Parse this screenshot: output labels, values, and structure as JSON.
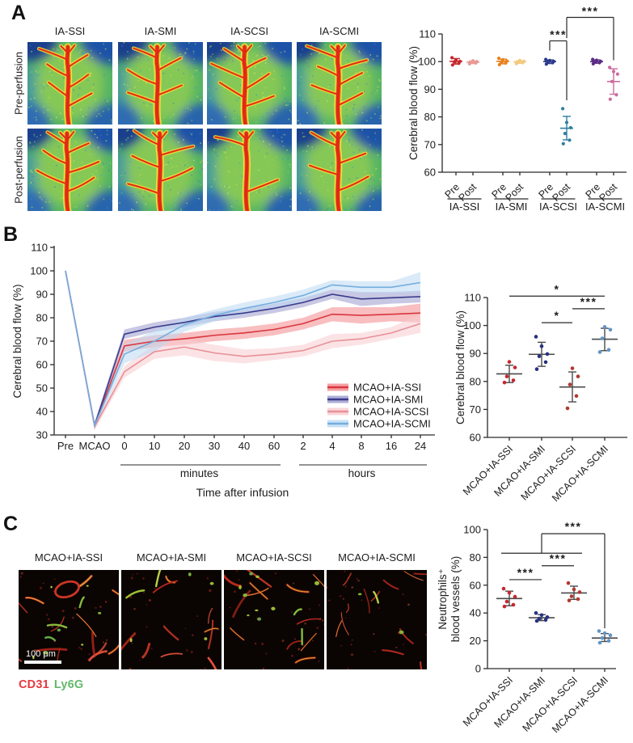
{
  "figure": {
    "background": "#ffffff"
  },
  "panelA": {
    "label": "A",
    "column_labels": [
      "IA-SSI",
      "IA-SMI",
      "IA-SCSI",
      "IA-SCMI"
    ],
    "row_labels": [
      "Pre-perfusion",
      "Post-perfusion"
    ]
  },
  "panelB": {
    "label": "B"
  },
  "panelC": {
    "label": "C",
    "column_labels": [
      "MCAO+IA-SSI",
      "MCAO+IA-SMI",
      "MCAO+IA-SCSI",
      "MCAO+IA-SCMI"
    ],
    "scale_bar": "100 μm",
    "stain_labels": [
      {
        "text": "CD31",
        "color": "#e23b41"
      },
      {
        "text": "Ly6G",
        "color": "#63b96a"
      }
    ]
  },
  "chart_data": [
    {
      "id": "panelA-scatter",
      "type": "scatter",
      "ylabel": "Cerebral blood flow (%)",
      "ylim": [
        60,
        110
      ],
      "yticks": [
        60,
        70,
        80,
        90,
        100,
        110
      ],
      "sub_ticks": [
        "Pre",
        "Post"
      ],
      "groups": [
        {
          "label": "IA-SSI",
          "pre": {
            "color": "#c5272d",
            "points": [
              98.8,
              99.4,
              99.9,
              100.1,
              100.6,
              101.4
            ],
            "mean": 100.1,
            "lo": 99.1,
            "hi": 101.1
          },
          "post": {
            "color": "#e89a94",
            "points": [
              99.2,
              99.5,
              99.8,
              100.0,
              100.3
            ],
            "mean": 99.8,
            "lo": 99.3,
            "hi": 100.2
          }
        },
        {
          "label": "IA-SMI",
          "pre": {
            "color": "#e8821e",
            "points": [
              98.9,
              99.5,
              99.9,
              100.2,
              100.7,
              101.2
            ],
            "mean": 100.1,
            "lo": 99.2,
            "hi": 100.9
          },
          "post": {
            "color": "#f3c97e",
            "points": [
              99.3,
              99.6,
              99.9,
              100.1,
              100.4
            ],
            "mean": 99.9,
            "lo": 99.4,
            "hi": 100.3
          }
        },
        {
          "label": "IA-SCSI",
          "pre": {
            "color": "#2c3a8c",
            "points": [
              99.1,
              99.6,
              99.9,
              100.1,
              100.4,
              100.8
            ],
            "mean": 100.0,
            "lo": 99.3,
            "hi": 100.6
          },
          "post": {
            "color": "#2e7f9e",
            "points": [
              70.3,
              71.6,
              74.0,
              76.1,
              78.0,
              83.0
            ],
            "mean": 75.9,
            "lo": 71.7,
            "hi": 80.2
          }
        },
        {
          "label": "IA-SCMI",
          "pre": {
            "color": "#5b2c86",
            "points": [
              99.2,
              99.6,
              99.9,
              100.1,
              100.5,
              100.8
            ],
            "mean": 100.0,
            "lo": 99.4,
            "hi": 100.6
          },
          "post": {
            "color": "#cb6b9d",
            "points": [
              86.4,
              88.0,
              92.8,
              95.5,
              96.4,
              97.9
            ],
            "mean": 92.8,
            "lo": 88.2,
            "hi": 97.4
          }
        }
      ],
      "significance": [
        {
          "label": "***",
          "from": [
            2,
            0
          ],
          "to": [
            2,
            1
          ],
          "bar": 107.5,
          "drop_from": 104.0,
          "drop_to": 86.0
        },
        {
          "label": "***",
          "from": [
            2,
            1
          ],
          "to": [
            3,
            1
          ],
          "bar": 116.0,
          "drop_from": 108.5,
          "drop_to": 100.5
        }
      ]
    },
    {
      "id": "panelB-line",
      "type": "line",
      "xlabel": "Time after infusion",
      "ylabel": "Cerebral blood flow (%)",
      "ylim": [
        30,
        110
      ],
      "yticks": [
        30,
        40,
        50,
        60,
        70,
        80,
        90,
        100,
        110
      ],
      "categories": [
        "Pre",
        "MCAO",
        "0",
        "10",
        "20",
        "30",
        "40",
        "60",
        "2",
        "4",
        "8",
        "16",
        "24"
      ],
      "x_section_labels": [
        {
          "label": "minutes",
          "span": [
            2,
            7
          ]
        },
        {
          "label": "hours",
          "span": [
            8,
            12
          ]
        }
      ],
      "legend_position": "bottom-right",
      "series": [
        {
          "name": "MCAO+IA-SSI",
          "line_color": "#d9363e",
          "band_color": "#f2888c",
          "values": [
            100,
            34,
            68,
            70,
            71,
            72.5,
            73.5,
            75,
            77.5,
            81.5,
            81,
            81.5,
            82
          ],
          "err": [
            0.4,
            1.5,
            2.5,
            2.5,
            2.5,
            2.5,
            2.5,
            2.5,
            2.5,
            3,
            3.5,
            3,
            4
          ]
        },
        {
          "name": "MCAO+IA-SMI",
          "line_color": "#3a3a8c",
          "band_color": "#9a9ace",
          "values": [
            100,
            34,
            73,
            76,
            78,
            80.5,
            82,
            84,
            86.5,
            90,
            88,
            88.5,
            89
          ],
          "err": [
            0.4,
            1.5,
            2,
            2,
            2,
            2,
            2,
            2,
            2,
            2,
            3,
            2.5,
            2.5
          ]
        },
        {
          "name": "MCAO+IA-SCSI",
          "line_color": "#e89098",
          "band_color": "#f7ccd0",
          "values": [
            100,
            33.5,
            57,
            65.5,
            67.5,
            65,
            63.5,
            64.5,
            66,
            70,
            71,
            73.5,
            77.5
          ],
          "err": [
            0.4,
            1.5,
            2.5,
            3,
            3.5,
            3.5,
            3,
            2.5,
            2.5,
            3,
            2.5,
            2.5,
            4
          ]
        },
        {
          "name": "MCAO+IA-SCMI",
          "line_color": "#74aede",
          "band_color": "#bcd9f2",
          "values": [
            100,
            34,
            64.5,
            70,
            77,
            81,
            84,
            86.5,
            89.5,
            94,
            93,
            93,
            95
          ],
          "err": [
            0.4,
            1.5,
            4,
            4.5,
            3,
            2.5,
            2.5,
            2.5,
            2.5,
            2,
            2.5,
            2.5,
            4.5
          ]
        }
      ]
    },
    {
      "id": "panelB-scatter",
      "type": "scatter",
      "ylabel": "Cerebral blood flow (%)",
      "ylim": [
        60,
        110
      ],
      "yticks": [
        60,
        70,
        80,
        90,
        100,
        110
      ],
      "groups": [
        {
          "label": "MCAO+IA-SSI",
          "color": "#c5272d",
          "points": [
            79.6,
            80.4,
            81.8,
            85.0,
            87.0
          ],
          "mean": 82.7,
          "lo": 79.6,
          "hi": 85.8
        },
        {
          "label": "MCAO+IA-SMI",
          "color": "#26327e",
          "points": [
            84.4,
            86.9,
            89.0,
            89.8,
            92.6,
            96.0
          ],
          "mean": 89.7,
          "lo": 85.4,
          "hi": 94.0
        },
        {
          "label": "MCAO+IA-SCSI",
          "color": "#b03a30",
          "points": [
            70.4,
            74.8,
            78.9,
            81.8,
            84.7
          ],
          "mean": 78.0,
          "lo": 72.7,
          "hi": 83.4
        },
        {
          "label": "MCAO+IA-SCMI",
          "color": "#6096c8",
          "points": [
            90.5,
            91.3,
            95.4,
            98.5,
            99.5
          ],
          "mean": 95.1,
          "lo": 91.0,
          "hi": 99.0
        }
      ],
      "significance": [
        {
          "label": "*",
          "from": 0,
          "to": 3,
          "bar": 110.5
        },
        {
          "label": "***",
          "from": 2,
          "to": 3,
          "bar": 106.0
        },
        {
          "label": "*",
          "from": 1,
          "to": 2,
          "bar": 101.0
        }
      ]
    },
    {
      "id": "panelC-scatter",
      "type": "scatter",
      "ylabel_lines": [
        "Neutrophils⁺",
        "blood vessels (%)"
      ],
      "ylim": [
        0,
        100
      ],
      "yticks": [
        0,
        20,
        40,
        60,
        80,
        100
      ],
      "groups": [
        {
          "label": "MCAO+IA-SSI",
          "color": "#c5272d",
          "points": [
            44.7,
            45.9,
            48.2,
            51.7,
            54.6,
            57.5
          ],
          "mean": 50.4,
          "lo": 45.2,
          "hi": 55.7
        },
        {
          "label": "MCAO+IA-SMI",
          "color": "#26327e",
          "points": [
            34.3,
            35.0,
            36.0,
            37.0,
            38.5,
            40.0
          ],
          "mean": 36.6,
          "lo": 34.5,
          "hi": 38.8
        },
        {
          "label": "MCAO+IA-SCSI",
          "color": "#b03a30",
          "points": [
            49.0,
            50.0,
            52.0,
            55.0,
            57.0,
            61.5
          ],
          "mean": 54.4,
          "lo": 49.8,
          "hi": 59.3
        },
        {
          "label": "MCAO+IA-SCMI",
          "color": "#6096c8",
          "points": [
            18.6,
            20.0,
            22.0,
            24.0,
            25.5,
            27.0
          ],
          "mean": 22.0,
          "lo": 19.5,
          "hi": 25.2
        }
      ],
      "significance": [
        {
          "label": "***",
          "type": "line",
          "from": 0,
          "to": 1,
          "bar": 64
        },
        {
          "label": "***",
          "type": "line",
          "from": 1,
          "to": 2,
          "bar": 74
        },
        {
          "label": "***",
          "type": "complex",
          "base_from": 0,
          "base_to": 2,
          "base_bar": 83,
          "riser_at": 1,
          "top_bar": 97,
          "drop_at": 3,
          "drop_to": 29
        }
      ]
    }
  ]
}
